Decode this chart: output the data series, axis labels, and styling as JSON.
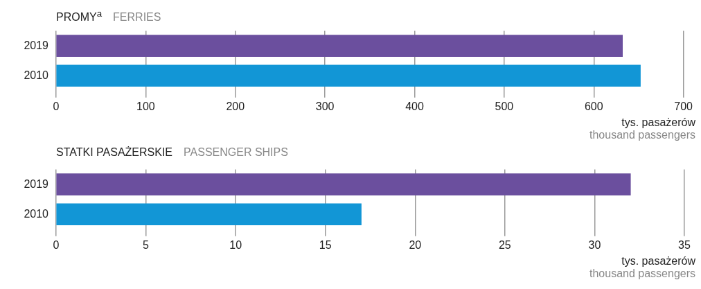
{
  "chart_data": [
    {
      "type": "bar",
      "orientation": "horizontal",
      "title": "PROMY$^{a}$",
      "subtitle": "FERRIES",
      "categories": [
        "2019",
        "2010"
      ],
      "values": [
        632,
        652
      ],
      "colors": [
        "#6b4f9e",
        "#1296d6"
      ],
      "xlim": [
        0,
        700
      ],
      "xticks": [
        0,
        100,
        200,
        300,
        400,
        500,
        600,
        700
      ],
      "grid": "x",
      "xlabel": "tys. pasażerów",
      "annotations": [
        "thousand passengers"
      ]
    },
    {
      "type": "bar",
      "orientation": "horizontal",
      "title": "STATKI PASAŻERSKIE",
      "subtitle": "PASSENGER SHIPS",
      "categories": [
        "2019",
        "2010"
      ],
      "values": [
        32,
        17
      ],
      "colors": [
        "#6b4f9e",
        "#1296d6"
      ],
      "xlim": [
        0,
        35
      ],
      "xticks": [
        0,
        5,
        10,
        15,
        20,
        25,
        30,
        35
      ],
      "grid": "x",
      "xlabel": "tys. pasażerów",
      "annotations": [
        "thousand passengers"
      ]
    }
  ]
}
